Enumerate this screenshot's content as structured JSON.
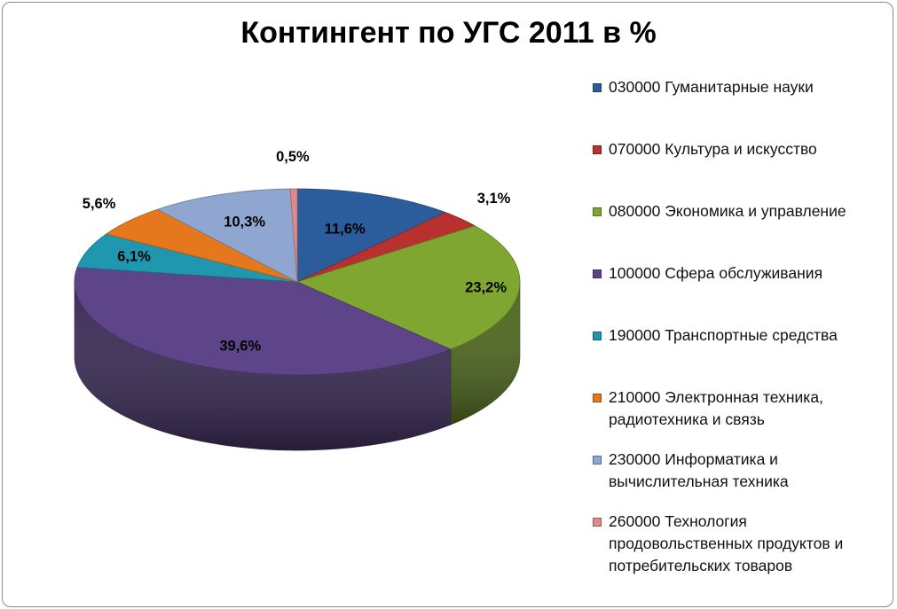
{
  "chart_data": {
    "type": "pie",
    "title": "Контингент по УГС 2011 в %",
    "categories": [
      "030000 Гуманитарные науки",
      "070000 Культура и искусство",
      "080000 Экономика и управление",
      "100000 Сфера обслуживания",
      "190000 Транспортные средства",
      "210000 Электронная техника, радиотехника и связь",
      "230000 Информатика и вычислительная техника",
      "260000 Технология продовольственных продуктов и потребительских товаров"
    ],
    "values": [
      11.6,
      3.1,
      23.2,
      39.6,
      6.1,
      5.6,
      10.3,
      0.5
    ],
    "data_labels": [
      "11,6%",
      "3,1%",
      "23,2%",
      "39,6%",
      "6,1%",
      "5,6%",
      "10,3%",
      "0,5%"
    ],
    "colors": [
      "#2b5c9c",
      "#b8312f",
      "#7ea631",
      "#5e4589",
      "#1f97ae",
      "#e5781d",
      "#8ea6d0",
      "#dd8a8a"
    ],
    "legend_position": "right",
    "style": "3d"
  }
}
